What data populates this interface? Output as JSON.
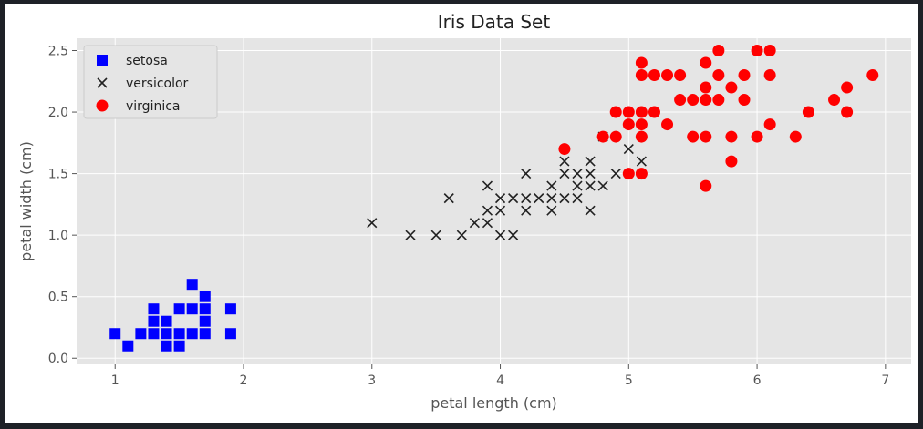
{
  "chart_data": {
    "type": "scatter",
    "title": "Iris Data Set",
    "xlabel": "petal length (cm)",
    "ylabel": "petal width (cm)",
    "xlim": [
      0.7,
      7.2
    ],
    "ylim": [
      -0.05,
      2.6
    ],
    "xticks": [
      1,
      2,
      3,
      4,
      5,
      6,
      7
    ],
    "yticks": [
      0.0,
      0.5,
      1.0,
      1.5,
      2.0,
      2.5
    ],
    "xtick_labels": [
      "1",
      "2",
      "3",
      "4",
      "5",
      "6",
      "7"
    ],
    "ytick_labels": [
      "0.0",
      "0.5",
      "1.0",
      "1.5",
      "2.0",
      "2.5"
    ],
    "grid": true,
    "background": "#e5e5e5",
    "legend_position": "upper-left",
    "series": [
      {
        "name": "setosa",
        "marker": "square",
        "color": "#0000ff",
        "points": [
          [
            1.0,
            0.2
          ],
          [
            1.1,
            0.1
          ],
          [
            1.2,
            0.2
          ],
          [
            1.3,
            0.2
          ],
          [
            1.3,
            0.3
          ],
          [
            1.3,
            0.4
          ],
          [
            1.4,
            0.1
          ],
          [
            1.4,
            0.2
          ],
          [
            1.4,
            0.3
          ],
          [
            1.5,
            0.1
          ],
          [
            1.5,
            0.2
          ],
          [
            1.5,
            0.4
          ],
          [
            1.6,
            0.2
          ],
          [
            1.6,
            0.4
          ],
          [
            1.6,
            0.6
          ],
          [
            1.7,
            0.2
          ],
          [
            1.7,
            0.3
          ],
          [
            1.7,
            0.4
          ],
          [
            1.7,
            0.5
          ],
          [
            1.9,
            0.2
          ],
          [
            1.9,
            0.4
          ]
        ]
      },
      {
        "name": "versicolor",
        "marker": "x",
        "color": "#222222",
        "points": [
          [
            3.0,
            1.1
          ],
          [
            3.3,
            1.0
          ],
          [
            3.5,
            1.0
          ],
          [
            3.6,
            1.3
          ],
          [
            3.7,
            1.0
          ],
          [
            3.8,
            1.1
          ],
          [
            3.9,
            1.1
          ],
          [
            3.9,
            1.2
          ],
          [
            3.9,
            1.4
          ],
          [
            4.0,
            1.0
          ],
          [
            4.0,
            1.2
          ],
          [
            4.0,
            1.3
          ],
          [
            4.1,
            1.0
          ],
          [
            4.1,
            1.3
          ],
          [
            4.2,
            1.2
          ],
          [
            4.2,
            1.3
          ],
          [
            4.2,
            1.5
          ],
          [
            4.3,
            1.3
          ],
          [
            4.4,
            1.2
          ],
          [
            4.4,
            1.3
          ],
          [
            4.4,
            1.4
          ],
          [
            4.5,
            1.3
          ],
          [
            4.5,
            1.5
          ],
          [
            4.5,
            1.6
          ],
          [
            4.6,
            1.3
          ],
          [
            4.6,
            1.4
          ],
          [
            4.6,
            1.5
          ],
          [
            4.7,
            1.2
          ],
          [
            4.7,
            1.4
          ],
          [
            4.7,
            1.5
          ],
          [
            4.7,
            1.6
          ],
          [
            4.8,
            1.4
          ],
          [
            4.8,
            1.8
          ],
          [
            4.9,
            1.5
          ],
          [
            5.0,
            1.7
          ],
          [
            5.1,
            1.6
          ]
        ]
      },
      {
        "name": "virginica",
        "marker": "circle",
        "color": "#ff0000",
        "points": [
          [
            4.5,
            1.7
          ],
          [
            4.8,
            1.8
          ],
          [
            4.9,
            1.8
          ],
          [
            4.9,
            2.0
          ],
          [
            5.0,
            1.5
          ],
          [
            5.0,
            1.9
          ],
          [
            5.0,
            2.0
          ],
          [
            5.1,
            1.5
          ],
          [
            5.1,
            1.8
          ],
          [
            5.1,
            1.9
          ],
          [
            5.1,
            2.0
          ],
          [
            5.1,
            2.3
          ],
          [
            5.1,
            2.4
          ],
          [
            5.2,
            2.0
          ],
          [
            5.2,
            2.3
          ],
          [
            5.3,
            1.9
          ],
          [
            5.3,
            2.3
          ],
          [
            5.4,
            2.1
          ],
          [
            5.4,
            2.3
          ],
          [
            5.5,
            1.8
          ],
          [
            5.5,
            2.1
          ],
          [
            5.6,
            1.4
          ],
          [
            5.6,
            1.8
          ],
          [
            5.6,
            2.1
          ],
          [
            5.6,
            2.2
          ],
          [
            5.6,
            2.4
          ],
          [
            5.7,
            2.1
          ],
          [
            5.7,
            2.3
          ],
          [
            5.7,
            2.5
          ],
          [
            5.8,
            1.6
          ],
          [
            5.8,
            1.8
          ],
          [
            5.8,
            2.2
          ],
          [
            5.9,
            2.1
          ],
          [
            5.9,
            2.3
          ],
          [
            6.0,
            1.8
          ],
          [
            6.0,
            2.5
          ],
          [
            6.1,
            1.9
          ],
          [
            6.1,
            2.3
          ],
          [
            6.1,
            2.5
          ],
          [
            6.3,
            1.8
          ],
          [
            6.4,
            2.0
          ],
          [
            6.6,
            2.1
          ],
          [
            6.7,
            2.0
          ],
          [
            6.7,
            2.2
          ],
          [
            6.9,
            2.3
          ]
        ]
      }
    ]
  }
}
